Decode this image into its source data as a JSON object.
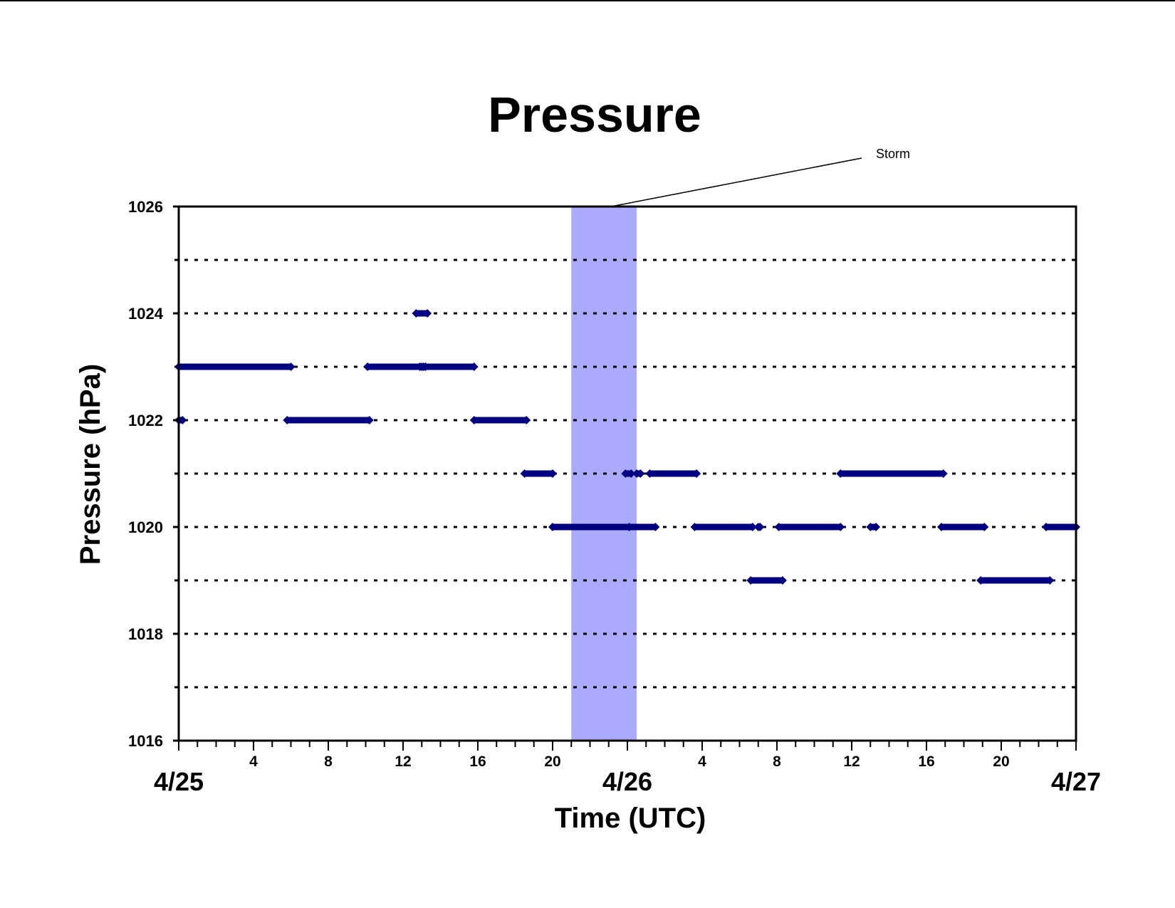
{
  "chart_data": {
    "type": "scatter",
    "title": "Pressure",
    "xlabel": "Time (UTC)",
    "ylabel": "Pressure (hPa)",
    "ylim": [
      1016,
      1026
    ],
    "y_ticks": [
      "1016",
      "1018",
      "1020",
      "1022",
      "1024",
      "1026"
    ],
    "y_gridlines": [
      1017,
      1018,
      1019,
      1020,
      1021,
      1022,
      1023,
      1024,
      1025
    ],
    "grid": "dotted horizontal",
    "xlim_hours": [
      0,
      48
    ],
    "x_hour_ticks": [
      "4",
      "8",
      "12",
      "16",
      "20",
      "4",
      "8",
      "12",
      "16",
      "20"
    ],
    "x_date_labels": [
      "4/25",
      "4/26",
      "4/27"
    ],
    "legend": "none",
    "colors": {
      "points": "#000080",
      "storm_band": "#aaaaff",
      "grid": "#000000"
    },
    "annotation": {
      "text": "Storm",
      "x_start_hour": 21,
      "x_end_hour": 24.5
    },
    "series": [
      {
        "segments": [
          {
            "y": 1022,
            "x": [
              0.0,
              0.2
            ]
          },
          {
            "y": 1023,
            "x": [
              0.0,
              6.0
            ]
          },
          {
            "y": 1022,
            "x": [
              5.8,
              10.2
            ]
          },
          {
            "y": 1023,
            "x": [
              10.1,
              12.9
            ]
          },
          {
            "y": 1023,
            "x": [
              13.0,
              13.1
            ]
          },
          {
            "y": 1024,
            "x": [
              12.7,
              13.3
            ]
          },
          {
            "y": 1023,
            "x": [
              13.2,
              15.8
            ]
          },
          {
            "y": 1022,
            "x": [
              15.8,
              18.6
            ]
          },
          {
            "y": 1021,
            "x": [
              18.5,
              20.0
            ]
          },
          {
            "y": 1020,
            "x": [
              20.0,
              24.1
            ]
          },
          {
            "y": 1021,
            "x": [
              23.9,
              24.2
            ]
          },
          {
            "y": 1021,
            "x": [
              24.5,
              24.7
            ]
          },
          {
            "y": 1020,
            "x": [
              24.1,
              25.5
            ]
          },
          {
            "y": 1021,
            "x": [
              25.2,
              27.7
            ]
          },
          {
            "y": 1020,
            "x": [
              27.6,
              30.7
            ]
          },
          {
            "y": 1020,
            "x": [
              31.0,
              31.1
            ]
          },
          {
            "y": 1019,
            "x": [
              30.6,
              32.3
            ]
          },
          {
            "y": 1020,
            "x": [
              32.1,
              35.4
            ]
          },
          {
            "y": 1021,
            "x": [
              35.4,
              40.9
            ]
          },
          {
            "y": 1020,
            "x": [
              37.0,
              37.3
            ]
          },
          {
            "y": 1020,
            "x": [
              40.8,
              43.1
            ]
          },
          {
            "y": 1019,
            "x": [
              42.9,
              46.6
            ]
          },
          {
            "y": 1020,
            "x": [
              46.4,
              48.0
            ]
          }
        ]
      }
    ]
  }
}
